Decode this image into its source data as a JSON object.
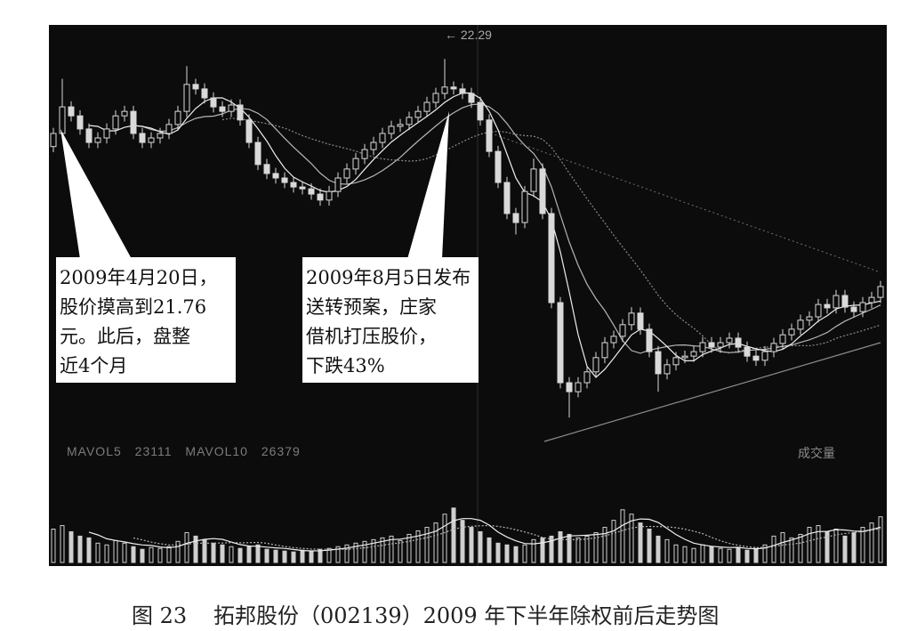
{
  "colors": {
    "page_background": "#ffffff",
    "chart_background": "#0c0c0c",
    "candle": "#d9d9d9",
    "ma5": "#eeeeee",
    "ma10": "#b5b5b5",
    "ma20": "#8a8a8a",
    "volume_bar": "#cfcfcf"
  },
  "figure": {
    "number": "图 23",
    "caption": "拓邦股份（002139）2009 年下半年除权前后走势图"
  },
  "chart_data": {
    "type": "bar",
    "style": "candlestick",
    "grid": false,
    "ylim": [
      11.5,
      23.2
    ],
    "max_marker": "22.29",
    "open": [
      19.95,
      20.3,
      21.01,
      20.77,
      20.42,
      20.06,
      20.18,
      20.42,
      20.77,
      20.89,
      20.3,
      20.06,
      20.18,
      20.3,
      20.54,
      20.89,
      21.61,
      21.49,
      21.25,
      21.01,
      20.89,
      21.06,
      20.66,
      20.06,
      19.47,
      19.23,
      19.11,
      18.99,
      18.87,
      18.82,
      18.68,
      18.52,
      18.75,
      19.11,
      19.35,
      19.63,
      19.87,
      20.06,
      20.3,
      20.49,
      20.54,
      20.73,
      20.89,
      21.13,
      21.37,
      21.54,
      21.49,
      21.37,
      21.13,
      20.66,
      19.82,
      18.99,
      18.16,
      17.92,
      18.75,
      19.35,
      18.16,
      15.78,
      13.64,
      13.4,
      13.64,
      13.93,
      14.31,
      14.71,
      14.88,
      15.19,
      15.5,
      15.07,
      14.47,
      13.88,
      14.12,
      14.31,
      14.35,
      14.47,
      14.71,
      14.59,
      14.71,
      14.83,
      14.59,
      14.35,
      14.24,
      14.47,
      14.69,
      14.92,
      15.07,
      15.31,
      15.4,
      15.73,
      15.64,
      15.97,
      15.66,
      15.54,
      15.78,
      15.92
    ],
    "high": [
      20.45,
      21.76,
      21.16,
      20.92,
      20.57,
      20.33,
      20.57,
      20.92,
      21.04,
      21.04,
      20.45,
      20.33,
      20.45,
      20.69,
      21.04,
      22.1,
      21.76,
      21.64,
      21.4,
      21.16,
      21.21,
      21.21,
      20.81,
      20.21,
      19.62,
      19.38,
      19.26,
      19.14,
      19.02,
      18.97,
      18.83,
      18.9,
      19.26,
      19.5,
      19.78,
      20.02,
      20.21,
      20.45,
      20.64,
      20.69,
      20.88,
      21.04,
      21.28,
      21.52,
      22.29,
      21.69,
      21.64,
      21.52,
      21.28,
      20.81,
      19.97,
      19.14,
      18.31,
      18.9,
      19.63,
      19.5,
      18.31,
      15.93,
      13.79,
      13.79,
      14.08,
      14.46,
      14.86,
      15.03,
      15.34,
      15.66,
      15.65,
      15.22,
      14.62,
      14.27,
      14.46,
      14.5,
      14.62,
      14.86,
      14.86,
      14.86,
      14.98,
      14.98,
      14.74,
      14.5,
      14.62,
      14.84,
      15.07,
      15.22,
      15.46,
      15.55,
      15.88,
      15.88,
      16.12,
      16.12,
      15.81,
      15.93,
      16.07,
      16.36
    ],
    "low": [
      19.8,
      20.15,
      20.62,
      20.27,
      19.91,
      19.91,
      20.03,
      20.27,
      20.62,
      20.15,
      19.91,
      19.91,
      20.03,
      20.15,
      20.39,
      20.74,
      21.34,
      21.1,
      20.86,
      20.74,
      20.74,
      20.51,
      19.91,
      19.32,
      19.08,
      18.96,
      18.84,
      18.72,
      18.67,
      18.53,
      18.37,
      18.37,
      18.6,
      18.96,
      19.2,
      19.48,
      19.72,
      19.91,
      20.15,
      20.34,
      20.39,
      20.58,
      20.74,
      20.98,
      21.22,
      21.34,
      21.22,
      20.98,
      20.51,
      19.67,
      18.84,
      18.01,
      17.6,
      17.77,
      18.6,
      18.01,
      15.63,
      13.49,
      12.71,
      13.25,
      13.49,
      13.78,
      14.16,
      14.56,
      14.73,
      15.04,
      14.92,
      14.32,
      13.4,
      13.73,
      13.97,
      14.16,
      14.2,
      14.32,
      14.44,
      14.44,
      14.56,
      14.44,
      14.2,
      14.09,
      14.09,
      14.32,
      14.54,
      14.77,
      14.92,
      15.16,
      15.25,
      15.49,
      15.49,
      15.51,
      15.39,
      15.39,
      15.63,
      15.77
    ],
    "close": [
      20.3,
      21.01,
      20.77,
      20.42,
      20.06,
      20.18,
      20.42,
      20.77,
      20.89,
      20.3,
      20.06,
      20.18,
      20.3,
      20.54,
      20.89,
      21.61,
      21.49,
      21.25,
      21.01,
      20.89,
      21.06,
      20.66,
      20.06,
      19.47,
      19.23,
      19.11,
      18.99,
      18.87,
      18.82,
      18.68,
      18.52,
      18.75,
      19.11,
      19.35,
      19.63,
      19.87,
      20.06,
      20.3,
      20.49,
      20.54,
      20.73,
      20.89,
      21.13,
      21.37,
      21.54,
      21.49,
      21.37,
      21.13,
      20.66,
      19.82,
      18.99,
      18.16,
      17.92,
      18.75,
      19.35,
      18.16,
      15.78,
      13.64,
      13.4,
      13.64,
      13.93,
      14.31,
      14.71,
      14.88,
      15.19,
      15.5,
      15.07,
      14.47,
      13.88,
      14.12,
      14.31,
      14.35,
      14.47,
      14.71,
      14.59,
      14.71,
      14.83,
      14.59,
      14.35,
      14.24,
      14.47,
      14.69,
      14.92,
      15.07,
      15.31,
      15.4,
      15.73,
      15.64,
      15.97,
      15.66,
      15.54,
      15.78,
      15.92,
      16.21
    ],
    "volume_ylim": [
      0,
      75000
    ],
    "volume": [
      38000,
      42000,
      35000,
      30000,
      28000,
      22000,
      20000,
      25000,
      22000,
      18000,
      15000,
      17000,
      16000,
      18000,
      24000,
      34000,
      30000,
      26000,
      22000,
      20000,
      18000,
      16000,
      18000,
      20000,
      15000,
      14000,
      13000,
      12000,
      14000,
      13000,
      15000,
      16000,
      18000,
      20000,
      22000,
      24000,
      26000,
      28000,
      30000,
      25000,
      32000,
      36000,
      40000,
      45000,
      55000,
      62000,
      48000,
      40000,
      35000,
      28000,
      22000,
      20000,
      18000,
      20000,
      26000,
      28000,
      30000,
      35000,
      32000,
      28000,
      30000,
      34000,
      40000,
      48000,
      60000,
      55000,
      45000,
      38000,
      30000,
      26000,
      20000,
      18000,
      16000,
      20000,
      18000,
      16000,
      15000,
      17000,
      14000,
      16000,
      20000,
      30000,
      34000,
      28000,
      32000,
      40000,
      42000,
      35000,
      38000,
      30000,
      34000,
      40000,
      45000,
      52000
    ],
    "volume_indicator": {
      "mavol5_label": "MAVOL5",
      "mavol5": "23111",
      "mavol10_label": "MAVOL10",
      "mavol10": "26379"
    },
    "volume_label": "成交量",
    "callouts": [
      {
        "lines": [
          "2009年4月20日，",
          "股价摸高到21.76",
          "元。此后，盘整",
          "近4个月"
        ]
      },
      {
        "lines": [
          "2009年8月5日发布",
          "送转预案，庄家",
          "借机打压股价，",
          "下跌43%"
        ]
      }
    ]
  }
}
